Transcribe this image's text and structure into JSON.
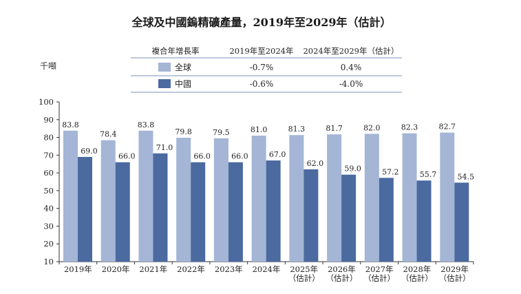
{
  "chart_data": {
    "type": "bar",
    "title": "全球及中國鎢精礦產量，2019年至2029年（估計）",
    "ylabel": "千噸",
    "ylim": [
      10,
      100
    ],
    "yticks": [
      10,
      20,
      30,
      40,
      50,
      60,
      70,
      80,
      90,
      100
    ],
    "grid": false,
    "categories": [
      [
        "2019年"
      ],
      [
        "2020年"
      ],
      [
        "2021年"
      ],
      [
        "2022年"
      ],
      [
        "2023年"
      ],
      [
        "2024年"
      ],
      [
        "2025年",
        "（估計）"
      ],
      [
        "2026年",
        "（估計）"
      ],
      [
        "2027年",
        "（估計）"
      ],
      [
        "2028年",
        "（估計）"
      ],
      [
        "2029年",
        "（估計）"
      ]
    ],
    "series": [
      {
        "name": "全球",
        "color": "#a4b5d6",
        "values": [
          83.8,
          78.4,
          83.8,
          79.8,
          79.5,
          81.0,
          81.3,
          81.7,
          82.0,
          82.3,
          82.7
        ]
      },
      {
        "name": "中國",
        "color": "#4a6aa0",
        "values": [
          69.0,
          66.0,
          71.0,
          66.0,
          66.0,
          67.0,
          62.0,
          59.0,
          57.2,
          55.7,
          54.5
        ]
      }
    ],
    "value_labels": [
      [
        "83.8",
        "78.4",
        "83.8",
        "79.8",
        "79.5",
        "81.0",
        "81.3",
        "81.7",
        "82.0",
        "82.3",
        "82.7"
      ],
      [
        "69.0",
        "66.0",
        "71.0",
        "66.0",
        "66.0",
        "67.0",
        "62.0",
        "59.0",
        "57.2",
        "55.7",
        "54.5"
      ]
    ],
    "legend_table": {
      "headers": [
        "複合年增長率",
        "2019年至2024年",
        "2024年至2029年（估計）"
      ],
      "rows": [
        {
          "label": "全球",
          "color": "#a4b5d6",
          "cagr_2019_2024": "-0.7%",
          "cagr_2024_2029": "0.4%"
        },
        {
          "label": "中國",
          "color": "#4a6aa0",
          "cagr_2019_2024": "-0.6%",
          "cagr_2024_2029": "-4.0%"
        }
      ]
    }
  }
}
